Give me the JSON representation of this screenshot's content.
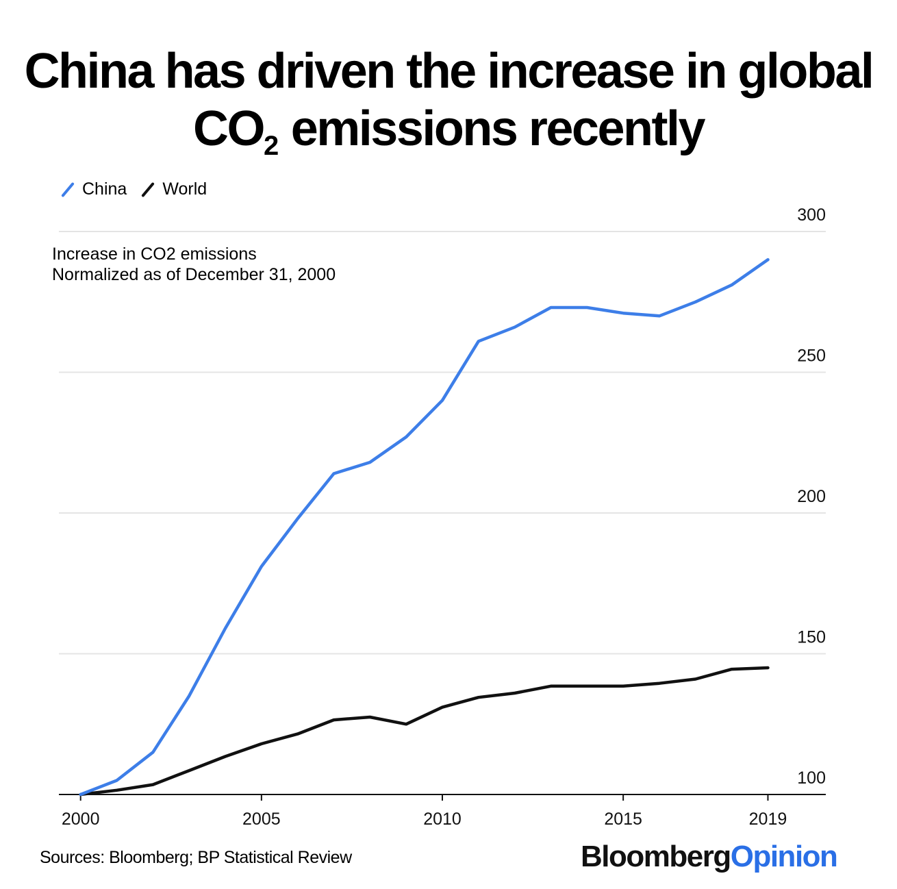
{
  "header": {
    "title_part1": "China has driven the increase in global CO",
    "title_subscript": "2",
    "title_part2": " emissions recently"
  },
  "subtitle": {
    "line1": "Increase in CO2 emissions",
    "line2": "Normalized as of December 31, 2000"
  },
  "footer": {
    "sources": "Sources: Bloomberg; BP Statistical Review",
    "brand_part1": "Bloomberg",
    "brand_part2": "Opinion"
  },
  "colors": {
    "china": "#3d7ee8",
    "world": "#111111",
    "brand_blue": "#2a6fe6",
    "grid": "#e4e4e4"
  },
  "chart_data": {
    "type": "line",
    "title": "China has driven the increase in global CO2 emissions recently",
    "subtitle": "Increase in CO2 emissions Normalized as of December 31, 2000",
    "x": [
      2000,
      2001,
      2002,
      2003,
      2004,
      2005,
      2006,
      2007,
      2008,
      2009,
      2010,
      2011,
      2012,
      2013,
      2014,
      2015,
      2016,
      2017,
      2018,
      2019
    ],
    "series": [
      {
        "name": "China",
        "color": "#3d7ee8",
        "values": [
          100,
          105,
          115,
          135,
          159,
          181,
          198,
          214,
          218,
          227,
          240,
          261,
          266,
          273,
          273,
          271,
          270,
          275,
          281,
          290
        ]
      },
      {
        "name": "World",
        "color": "#111111",
        "values": [
          100,
          101.5,
          103.5,
          108.5,
          113.5,
          118,
          121.5,
          126.5,
          127.5,
          125,
          131,
          134.5,
          136,
          138.5,
          138.5,
          138.5,
          139.5,
          141,
          144.5,
          145
        ]
      }
    ],
    "xticks": [
      "2000",
      "2005",
      "2010",
      "2015",
      "2019"
    ],
    "xtick_values": [
      2000,
      2005,
      2010,
      2015,
      2019
    ],
    "yticks": [
      "100",
      "150",
      "200",
      "250",
      "300"
    ],
    "ytick_values": [
      100,
      150,
      200,
      250,
      300
    ],
    "xlim": [
      1999.4,
      2020.6
    ],
    "ylim": [
      100,
      300
    ],
    "xlabel": "",
    "ylabel": "",
    "grid": true,
    "legend": "top-left"
  }
}
